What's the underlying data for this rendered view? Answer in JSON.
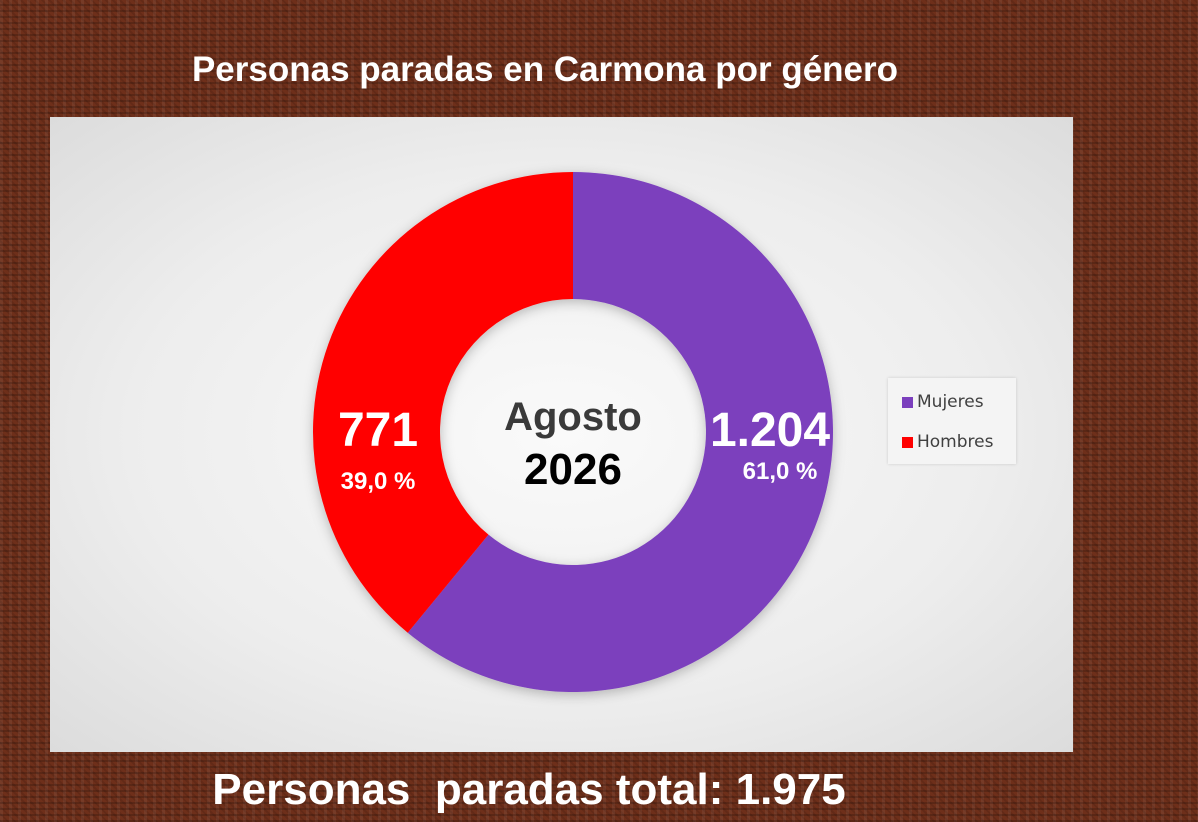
{
  "title": "Personas paradas en Carmona por género",
  "chart_data": {
    "type": "pie",
    "variant": "donut",
    "center_label": {
      "month": "Agosto",
      "year": "2026"
    },
    "slices": [
      {
        "name": "Mujeres",
        "value": 1204,
        "value_label": "1.204",
        "percent_label": "61,0 %",
        "color": "#7b3fbd"
      },
      {
        "name": "Hombres",
        "value": 771,
        "value_label": "771",
        "percent_label": "39,0 %",
        "color": "#ff0000"
      }
    ],
    "legend": [
      "Mujeres",
      "Hombres"
    ],
    "legend_position": "right"
  },
  "footer": "Personas  paradas total: 1.975"
}
